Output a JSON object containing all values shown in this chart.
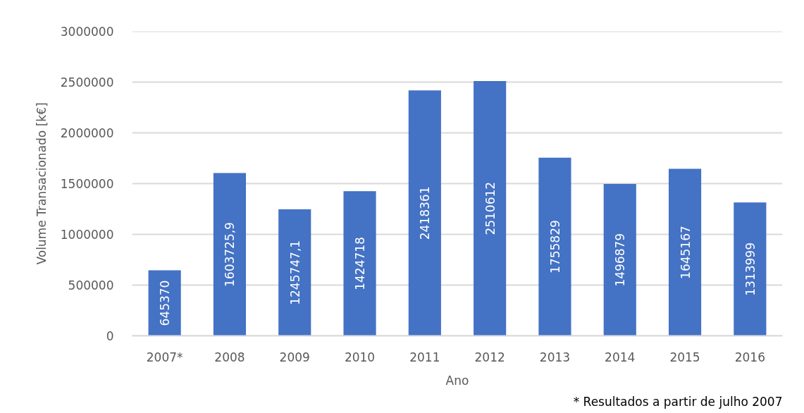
{
  "chart_data": {
    "type": "bar",
    "xlabel": "Ano",
    "ylabel": "Volume Transacionado [k€]",
    "categories": [
      "2007*",
      "2008",
      "2009",
      "2010",
      "2011",
      "2012",
      "2013",
      "2014",
      "2015",
      "2016"
    ],
    "values": [
      645370,
      1603725.9,
      1245747.1,
      1424718,
      2418361,
      2510612,
      1755829,
      1496879,
      1645167,
      1313999
    ],
    "value_labels": [
      "645370",
      "1603725,9",
      "1245747,1",
      "1424718",
      "2418361",
      "2510612",
      "1755829",
      "1496879",
      "1645167",
      "1313999"
    ],
    "color": "#4472c4",
    "ylim": [
      0,
      3000000
    ],
    "yticks": [
      0,
      500000,
      1000000,
      1500000,
      2000000,
      2500000,
      3000000
    ],
    "grid": "y",
    "annotations": [
      "* Resultados a partir de julho 2007"
    ]
  }
}
